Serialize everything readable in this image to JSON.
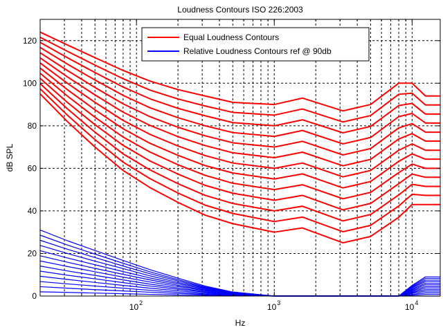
{
  "chart_data": {
    "type": "line",
    "title": "Loudness Contours ISO 226:2003",
    "xlabel": "Hz",
    "ylabel": "dB SPL",
    "xscale": "log",
    "grid": true,
    "legend": "top",
    "xlim": [
      20,
      16000
    ],
    "ylim": [
      0,
      130
    ],
    "xticks": [
      {
        "value": 100,
        "label": "10",
        "exponent": "2"
      },
      {
        "value": 1000,
        "label": "10",
        "exponent": "3"
      },
      {
        "value": 10000,
        "label": "10",
        "exponent": "4"
      }
    ],
    "yticks": [
      0,
      20,
      40,
      60,
      80,
      100,
      120
    ],
    "x": [
      20,
      31.5,
      50,
      80,
      125,
      200,
      315,
      500,
      1000,
      1600,
      3150,
      5000,
      8000,
      10000,
      12500,
      16000
    ],
    "series": [
      {
        "name": "Equal Loudness Contours",
        "color": "#ff0000",
        "lines": [
          [
            95,
            82,
            70,
            59,
            51,
            44,
            38,
            34,
            30,
            32,
            25,
            28,
            37,
            43,
            43,
            43
          ],
          [
            97.4,
            85,
            73.5,
            62.9,
            55.2,
            48.4,
            42.7,
            38.8,
            35,
            37.1,
            30.2,
            33.2,
            42.3,
            47.8,
            47.3,
            47.3
          ],
          [
            99.8,
            88,
            77,
            66.8,
            59.3,
            52.8,
            47.3,
            43.5,
            40,
            42.2,
            35.3,
            38.3,
            47.5,
            52.5,
            51.5,
            51.5
          ],
          [
            102.3,
            91,
            80.5,
            70.8,
            63.5,
            57.3,
            52,
            48.3,
            45,
            47.3,
            40.5,
            43.5,
            52.8,
            57.3,
            55.8,
            55.8
          ],
          [
            104.7,
            94,
            84,
            74.7,
            67.7,
            61.7,
            56.7,
            53,
            50,
            52.3,
            45.7,
            48.7,
            58,
            62,
            60,
            60
          ],
          [
            107.1,
            97,
            87.5,
            78.6,
            71.8,
            66.1,
            61.3,
            57.8,
            55,
            57.4,
            50.8,
            53.8,
            63.3,
            66.8,
            64.3,
            64.3
          ],
          [
            109.5,
            100,
            91,
            82.5,
            76,
            70.5,
            66,
            62.5,
            60,
            62.5,
            56,
            59,
            68.5,
            71.5,
            68.5,
            68.5
          ],
          [
            111.9,
            103,
            94.5,
            86.4,
            80.2,
            74.9,
            70.7,
            67.3,
            65,
            67.6,
            61.2,
            64.2,
            73.8,
            76.3,
            72.8,
            72.8
          ],
          [
            114.3,
            106,
            98,
            90.3,
            84.3,
            79.3,
            75.3,
            72,
            70,
            72.7,
            66.3,
            69.3,
            79,
            81,
            77,
            77
          ],
          [
            116.8,
            109,
            101.5,
            94.3,
            88.5,
            83.8,
            80,
            76.8,
            75,
            77.8,
            71.5,
            74.5,
            84.3,
            85.8,
            81.3,
            81.3
          ],
          [
            119.2,
            112,
            105,
            98.2,
            92.7,
            88.2,
            84.7,
            81.5,
            80,
            82.8,
            76.7,
            79.7,
            89.5,
            90.5,
            85.5,
            85.5
          ],
          [
            121.6,
            115,
            108.5,
            102.1,
            96.8,
            92.6,
            89.3,
            86.3,
            85,
            87.9,
            81.8,
            84.8,
            94.8,
            95.3,
            89.8,
            89.8
          ],
          [
            124,
            118,
            112,
            106,
            101,
            97,
            94,
            91,
            90,
            93,
            87,
            90,
            100,
            100,
            94,
            94
          ]
        ]
      },
      {
        "name": "Relative Loudness Contours ref @ 90db",
        "color": "#0000ff",
        "lines": [
          [
            2,
            1.7,
            1.4,
            1.1,
            0.8,
            0.5,
            0.3,
            0.1,
            0,
            0,
            0,
            0,
            0,
            0,
            0,
            0
          ],
          [
            4.4,
            3.7,
            3,
            2.4,
            1.8,
            1.2,
            0.7,
            0.3,
            0,
            0,
            0,
            0,
            0,
            0.4,
            0.8,
            0.8
          ],
          [
            6.8,
            5.7,
            4.7,
            3.7,
            2.7,
            1.8,
            1,
            0.4,
            0,
            0,
            0,
            0,
            0,
            0.8,
            1.5,
            1.5
          ],
          [
            9.3,
            7.8,
            6.4,
            5,
            3.7,
            2.5,
            1.4,
            0.6,
            0,
            0,
            0,
            0,
            0,
            1.3,
            2.3,
            2.3
          ],
          [
            11.7,
            9.8,
            8.1,
            6.3,
            4.7,
            3.2,
            1.8,
            0.7,
            0,
            0,
            0,
            0,
            0,
            1.7,
            3,
            3
          ],
          [
            14.1,
            11.8,
            9.7,
            7.6,
            5.6,
            3.8,
            2.1,
            0.8,
            0,
            0,
            0,
            0,
            0,
            2.1,
            3.8,
            3.8
          ],
          [
            16.5,
            13.9,
            11.4,
            8.9,
            6.6,
            4.5,
            2.5,
            1,
            0,
            0,
            0,
            0,
            0,
            2.5,
            4.5,
            4.5
          ],
          [
            18.9,
            15.9,
            13,
            10.2,
            7.6,
            5.1,
            2.8,
            1.1,
            0,
            0,
            0,
            0,
            0,
            2.9,
            5.3,
            5.3
          ],
          [
            21.3,
            17.9,
            14.7,
            11.5,
            8.5,
            5.8,
            3.2,
            1.3,
            0,
            0,
            0,
            0,
            0,
            3.3,
            6,
            6
          ],
          [
            23.8,
            20,
            16.4,
            12.9,
            9.5,
            6.4,
            3.6,
            1.4,
            0,
            0,
            0,
            0,
            0,
            3.8,
            6.8,
            6.8
          ],
          [
            26.2,
            22,
            18.1,
            14.1,
            10.5,
            7.1,
            3.9,
            1.6,
            0,
            0,
            0,
            0,
            0,
            4.2,
            7.5,
            7.5
          ],
          [
            28.6,
            24,
            19.7,
            15.4,
            11.4,
            7.7,
            4.3,
            1.7,
            0,
            0,
            0,
            0,
            0,
            4.6,
            8.3,
            8.3
          ],
          [
            31,
            26,
            21.4,
            16.7,
            12.4,
            8.4,
            4.7,
            1.9,
            0,
            0,
            0,
            0,
            0,
            5,
            9,
            9
          ]
        ]
      }
    ]
  }
}
